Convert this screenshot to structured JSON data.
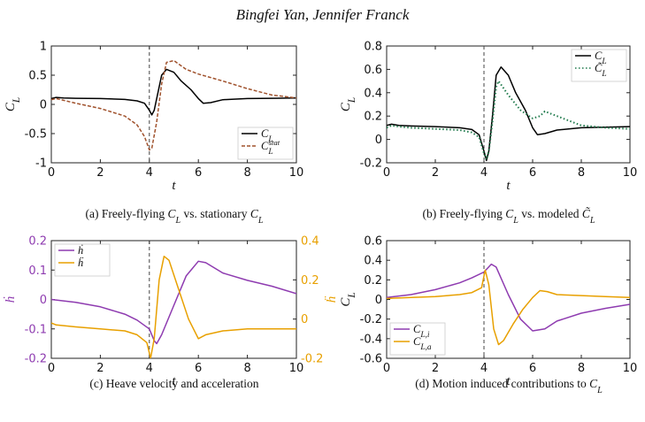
{
  "header": {
    "authors": "Bingfei Yan, Jennifer Franck"
  },
  "colors": {
    "black": "#000000",
    "brown": "#a0522d",
    "green": "#1f7a4c",
    "purple": "#8e3bb0",
    "orange": "#e8a000",
    "dashed": "#444444"
  },
  "chart_data": [
    {
      "id": "a",
      "type": "line",
      "caption": "(a) Freely-flying C_L vs. stationary C_L",
      "xlabel": "t",
      "ylabel": "C_L",
      "xlim": [
        0,
        10
      ],
      "ylim": [
        -1,
        1
      ],
      "xticks": [
        0,
        2,
        4,
        6,
        8,
        10
      ],
      "yticks": [
        -1,
        -0.5,
        0,
        0.5,
        1
      ],
      "vline": 4,
      "legend_position": "lower-right",
      "series": [
        {
          "name": "C_L",
          "color_key": "black",
          "dash": "solid",
          "points": [
            [
              0,
              0.1
            ],
            [
              0.2,
              0.12
            ],
            [
              0.5,
              0.11
            ],
            [
              1,
              0.105
            ],
            [
              2,
              0.1
            ],
            [
              3,
              0.085
            ],
            [
              3.5,
              0.06
            ],
            [
              3.8,
              0.02
            ],
            [
              4,
              -0.1
            ],
            [
              4.1,
              -0.18
            ],
            [
              4.2,
              -0.1
            ],
            [
              4.35,
              0.2
            ],
            [
              4.5,
              0.5
            ],
            [
              4.7,
              0.6
            ],
            [
              5,
              0.55
            ],
            [
              5.3,
              0.4
            ],
            [
              5.7,
              0.25
            ],
            [
              6,
              0.1
            ],
            [
              6.2,
              0.02
            ],
            [
              6.5,
              0.03
            ],
            [
              7,
              0.08
            ],
            [
              8,
              0.1
            ],
            [
              9,
              0.105
            ],
            [
              10,
              0.11
            ]
          ]
        },
        {
          "name": "C_L^stat",
          "color_key": "brown",
          "dash": "dashed",
          "points": [
            [
              0,
              0.08
            ],
            [
              0.2,
              0.1
            ],
            [
              0.5,
              0.07
            ],
            [
              1,
              0.02
            ],
            [
              2,
              -0.07
            ],
            [
              3,
              -0.2
            ],
            [
              3.5,
              -0.35
            ],
            [
              3.8,
              -0.55
            ],
            [
              4,
              -0.78
            ],
            [
              4.1,
              -0.75
            ],
            [
              4.3,
              -0.3
            ],
            [
              4.5,
              0.35
            ],
            [
              4.7,
              0.72
            ],
            [
              5,
              0.75
            ],
            [
              5.5,
              0.6
            ],
            [
              6,
              0.52
            ],
            [
              7,
              0.4
            ],
            [
              8,
              0.27
            ],
            [
              9,
              0.16
            ],
            [
              10,
              0.11
            ]
          ]
        }
      ]
    },
    {
      "id": "b",
      "type": "line",
      "caption": "(b) Freely-flying C_L vs. modeled C̃_L",
      "xlabel": "t",
      "ylabel": "C_L",
      "xlim": [
        0,
        10
      ],
      "ylim": [
        -0.2,
        0.8
      ],
      "xticks": [
        0,
        2,
        4,
        6,
        8,
        10
      ],
      "yticks": [
        -0.2,
        0,
        0.2,
        0.4,
        0.6,
        0.8
      ],
      "vline": 4,
      "legend_position": "top-right",
      "series": [
        {
          "name": "C_L",
          "color_key": "black",
          "dash": "solid",
          "points": [
            [
              0,
              0.12
            ],
            [
              0.2,
              0.13
            ],
            [
              0.5,
              0.12
            ],
            [
              1,
              0.115
            ],
            [
              2,
              0.11
            ],
            [
              3,
              0.1
            ],
            [
              3.5,
              0.085
            ],
            [
              3.8,
              0.04
            ],
            [
              4,
              -0.1
            ],
            [
              4.1,
              -0.18
            ],
            [
              4.2,
              -0.1
            ],
            [
              4.35,
              0.2
            ],
            [
              4.5,
              0.55
            ],
            [
              4.7,
              0.62
            ],
            [
              5,
              0.55
            ],
            [
              5.3,
              0.4
            ],
            [
              5.7,
              0.25
            ],
            [
              6,
              0.1
            ],
            [
              6.2,
              0.04
            ],
            [
              6.5,
              0.05
            ],
            [
              7,
              0.08
            ],
            [
              8,
              0.1
            ],
            [
              9,
              0.105
            ],
            [
              10,
              0.11
            ]
          ]
        },
        {
          "name": "C̃_L",
          "color_key": "green",
          "dash": "dotted",
          "points": [
            [
              0,
              0.1
            ],
            [
              0.2,
              0.12
            ],
            [
              0.5,
              0.11
            ],
            [
              1,
              0.1
            ],
            [
              2,
              0.09
            ],
            [
              3,
              0.08
            ],
            [
              3.5,
              0.06
            ],
            [
              3.8,
              0.02
            ],
            [
              4,
              -0.12
            ],
            [
              4.1,
              -0.17
            ],
            [
              4.2,
              -0.1
            ],
            [
              4.35,
              0.15
            ],
            [
              4.5,
              0.45
            ],
            [
              4.6,
              0.5
            ],
            [
              5,
              0.38
            ],
            [
              5.5,
              0.25
            ],
            [
              6,
              0.18
            ],
            [
              6.3,
              0.2
            ],
            [
              6.5,
              0.24
            ],
            [
              7,
              0.2
            ],
            [
              8,
              0.12
            ],
            [
              9,
              0.1
            ],
            [
              10,
              0.09
            ]
          ]
        }
      ]
    },
    {
      "id": "c",
      "type": "line",
      "caption": "(c) Heave velocity and acceleration",
      "xlabel": "t",
      "ylabel": "ḣ",
      "ylabel_right": "ḧ",
      "xlim": [
        0,
        10
      ],
      "ylim": [
        -0.2,
        0.2
      ],
      "ylim_right": [
        -0.2,
        0.4
      ],
      "xticks": [
        0,
        2,
        4,
        6,
        8,
        10
      ],
      "yticks": [
        -0.2,
        -0.1,
        0,
        0.1,
        0.2
      ],
      "yticks_right": [
        -0.2,
        0,
        0.2,
        0.4
      ],
      "vline": 4,
      "legend_position": "top-left",
      "series": [
        {
          "name": "ḣ",
          "color_key": "purple",
          "dash": "solid",
          "axis": "left",
          "points": [
            [
              0,
              0
            ],
            [
              1,
              -0.01
            ],
            [
              2,
              -0.025
            ],
            [
              3,
              -0.05
            ],
            [
              3.5,
              -0.07
            ],
            [
              4,
              -0.1
            ],
            [
              4.2,
              -0.14
            ],
            [
              4.3,
              -0.15
            ],
            [
              4.5,
              -0.12
            ],
            [
              5,
              -0.02
            ],
            [
              5.5,
              0.08
            ],
            [
              6,
              0.13
            ],
            [
              6.3,
              0.125
            ],
            [
              7,
              0.09
            ],
            [
              8,
              0.065
            ],
            [
              9,
              0.045
            ],
            [
              10,
              0.02
            ]
          ]
        },
        {
          "name": "ḧ",
          "color_key": "orange",
          "dash": "solid",
          "axis": "right",
          "points": [
            [
              0,
              -0.02
            ],
            [
              0.2,
              -0.03
            ],
            [
              1,
              -0.04
            ],
            [
              2,
              -0.05
            ],
            [
              3,
              -0.06
            ],
            [
              3.5,
              -0.08
            ],
            [
              3.9,
              -0.12
            ],
            [
              4.05,
              -0.2
            ],
            [
              4.2,
              -0.1
            ],
            [
              4.4,
              0.2
            ],
            [
              4.6,
              0.32
            ],
            [
              4.8,
              0.3
            ],
            [
              5.2,
              0.15
            ],
            [
              5.6,
              0.0
            ],
            [
              6,
              -0.1
            ],
            [
              6.3,
              -0.08
            ],
            [
              7,
              -0.06
            ],
            [
              8,
              -0.05
            ],
            [
              9,
              -0.05
            ],
            [
              10,
              -0.05
            ]
          ]
        }
      ]
    },
    {
      "id": "d",
      "type": "line",
      "caption": "(d) Motion induced contributions to C_L",
      "xlabel": "t",
      "ylabel": "C_L",
      "xlim": [
        0,
        10
      ],
      "ylim": [
        -0.6,
        0.6
      ],
      "xticks": [
        0,
        2,
        4,
        6,
        8,
        10
      ],
      "yticks": [
        -0.6,
        -0.4,
        -0.2,
        0,
        0.2,
        0.4,
        0.6
      ],
      "vline": 4,
      "legend_position": "lower-left",
      "series": [
        {
          "name": "C_{L,i}",
          "color_key": "purple",
          "dash": "solid",
          "points": [
            [
              0,
              0.02
            ],
            [
              1,
              0.05
            ],
            [
              2,
              0.1
            ],
            [
              3,
              0.17
            ],
            [
              3.5,
              0.22
            ],
            [
              4,
              0.28
            ],
            [
              4.3,
              0.36
            ],
            [
              4.5,
              0.33
            ],
            [
              5,
              0.05
            ],
            [
              5.5,
              -0.2
            ],
            [
              6,
              -0.32
            ],
            [
              6.5,
              -0.3
            ],
            [
              7,
              -0.22
            ],
            [
              8,
              -0.14
            ],
            [
              9,
              -0.09
            ],
            [
              10,
              -0.05
            ]
          ]
        },
        {
          "name": "C_{L,a}",
          "color_key": "orange",
          "dash": "solid",
          "points": [
            [
              0,
              0.01
            ],
            [
              1,
              0.02
            ],
            [
              2,
              0.03
            ],
            [
              3,
              0.05
            ],
            [
              3.5,
              0.07
            ],
            [
              3.9,
              0.12
            ],
            [
              4.05,
              0.3
            ],
            [
              4.2,
              0.15
            ],
            [
              4.4,
              -0.3
            ],
            [
              4.6,
              -0.46
            ],
            [
              4.8,
              -0.42
            ],
            [
              5.2,
              -0.25
            ],
            [
              5.6,
              -0.1
            ],
            [
              6,
              0.02
            ],
            [
              6.3,
              0.09
            ],
            [
              6.6,
              0.08
            ],
            [
              7,
              0.05
            ],
            [
              8,
              0.04
            ],
            [
              9,
              0.03
            ],
            [
              10,
              0.02
            ]
          ]
        }
      ]
    }
  ]
}
